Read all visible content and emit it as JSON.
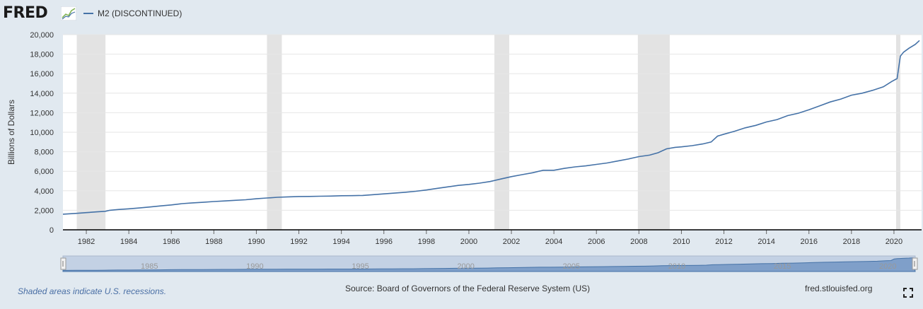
{
  "header": {
    "logo_text": "FRED",
    "logo_icon": "chart-line-icon"
  },
  "legend": {
    "label": "M2 (DISCONTINUED)",
    "color": "#4572a7"
  },
  "chart_data": {
    "type": "line",
    "title": "",
    "xlabel": "",
    "ylabel": "Billions of Dollars",
    "xlim": [
      1980.9,
      2021.3
    ],
    "ylim": [
      0,
      20000
    ],
    "y_ticks": [
      0,
      2000,
      4000,
      6000,
      8000,
      10000,
      12000,
      14000,
      16000,
      18000,
      20000
    ],
    "y_tick_labels": [
      "0",
      "2,000",
      "4,000",
      "6,000",
      "8,000",
      "10,000",
      "12,000",
      "14,000",
      "16,000",
      "18,000",
      "20,000"
    ],
    "x_ticks": [
      1982,
      1984,
      1986,
      1988,
      1990,
      1992,
      1994,
      1996,
      1998,
      2000,
      2002,
      2004,
      2006,
      2008,
      2010,
      2012,
      2014,
      2016,
      2018,
      2020
    ],
    "x_tick_labels": [
      "1982",
      "1984",
      "1986",
      "1988",
      "1990",
      "1992",
      "1994",
      "1996",
      "1998",
      "2000",
      "2002",
      "2004",
      "2006",
      "2008",
      "2010",
      "2012",
      "2014",
      "2016",
      "2018",
      "2020"
    ],
    "recessions": [
      [
        1981.55,
        1982.9
      ],
      [
        1990.5,
        1991.2
      ],
      [
        2001.2,
        2001.9
      ],
      [
        2007.95,
        2009.45
      ],
      [
        2020.1,
        2020.3
      ]
    ],
    "series": [
      {
        "name": "M2 (DISCONTINUED)",
        "color": "#4572a7",
        "x": [
          1980.9,
          1981.5,
          1982.0,
          1982.5,
          1982.9,
          1983.1,
          1983.5,
          1984.0,
          1984.5,
          1985.0,
          1985.5,
          1986.0,
          1986.5,
          1987.0,
          1987.5,
          1988.0,
          1988.5,
          1989.0,
          1989.5,
          1990.0,
          1990.5,
          1991.0,
          1991.5,
          1992.0,
          1992.5,
          1993.0,
          1993.5,
          1994.0,
          1994.5,
          1995.0,
          1995.5,
          1996.0,
          1996.5,
          1997.0,
          1997.5,
          1998.0,
          1998.5,
          1999.0,
          1999.5,
          2000.0,
          2000.5,
          2001.0,
          2001.5,
          2002.0,
          2002.5,
          2003.0,
          2003.5,
          2004.0,
          2004.5,
          2005.0,
          2005.5,
          2006.0,
          2006.5,
          2007.0,
          2007.5,
          2008.0,
          2008.5,
          2008.9,
          2009.3,
          2009.7,
          2010.0,
          2010.5,
          2011.0,
          2011.4,
          2011.7,
          2012.0,
          2012.5,
          2013.0,
          2013.5,
          2014.0,
          2014.5,
          2015.0,
          2015.5,
          2016.0,
          2016.5,
          2017.0,
          2017.5,
          2018.0,
          2018.5,
          2019.0,
          2019.5,
          2019.9,
          2020.15,
          2020.3,
          2020.45,
          2020.7,
          2021.0,
          2021.2
        ],
        "values": [
          1600,
          1680,
          1760,
          1840,
          1900,
          2000,
          2080,
          2150,
          2240,
          2340,
          2450,
          2550,
          2680,
          2760,
          2820,
          2900,
          2960,
          3020,
          3080,
          3180,
          3260,
          3330,
          3380,
          3410,
          3420,
          3440,
          3460,
          3490,
          3500,
          3520,
          3600,
          3680,
          3760,
          3850,
          3950,
          4080,
          4250,
          4400,
          4550,
          4650,
          4780,
          4950,
          5200,
          5450,
          5650,
          5850,
          6100,
          6100,
          6300,
          6450,
          6550,
          6700,
          6850,
          7050,
          7250,
          7500,
          7650,
          7900,
          8300,
          8450,
          8500,
          8620,
          8800,
          9000,
          9600,
          9800,
          10100,
          10450,
          10700,
          11050,
          11300,
          11700,
          11950,
          12300,
          12700,
          13100,
          13400,
          13800,
          14000,
          14300,
          14650,
          15200,
          15500,
          17800,
          18200,
          18600,
          19000,
          19400
        ]
      }
    ]
  },
  "navigator": {
    "labels": [
      "1985",
      "1990",
      "1995",
      "2000",
      "2005",
      "2010",
      "2015",
      "2020"
    ]
  },
  "footer": {
    "note": "Shaded areas indicate U.S. recessions.",
    "source": "Source: Board of Governors of the Federal Reserve System (US)",
    "site": "fred.stlouisfed.org",
    "fullscreen_icon": "fullscreen-icon"
  }
}
